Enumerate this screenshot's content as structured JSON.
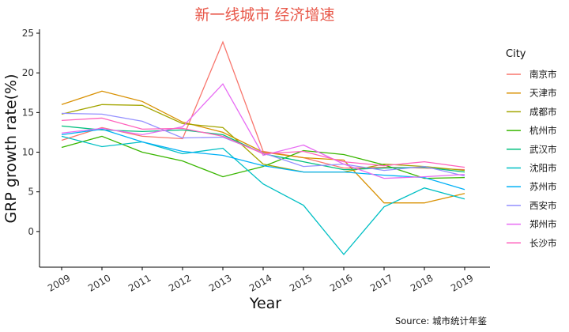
{
  "chart_data": {
    "type": "line",
    "title": "新一线城市 经济增速",
    "title_color": "#E8584A",
    "xlabel": "Year",
    "ylabel": "GRP growth rate(%)",
    "x": [
      "2009",
      "2010",
      "2011",
      "2012",
      "2013",
      "2014",
      "2015",
      "2016",
      "2017",
      "2018",
      "2019"
    ],
    "xlim": [
      2009,
      2019
    ],
    "ylim": [
      -4.5,
      25.5
    ],
    "yticks": [
      0,
      5,
      10,
      15,
      20,
      25
    ],
    "grid": false,
    "legend_title": "City",
    "legend_position": "right",
    "source": "Source: 城市统计年鉴",
    "series": [
      {
        "name": "南京市",
        "color": "#F8766D",
        "values": [
          11.5,
          13.1,
          12.0,
          11.7,
          23.9,
          10.1,
          9.3,
          8.0,
          8.1,
          8.0,
          7.8
        ]
      },
      {
        "name": "天津市",
        "color": "#D89000",
        "values": [
          16.0,
          17.7,
          16.4,
          13.8,
          12.5,
          10.0,
          9.3,
          9.0,
          3.6,
          3.6,
          4.8
        ]
      },
      {
        "name": "成都市",
        "color": "#A3A500",
        "values": [
          14.8,
          16.0,
          15.9,
          13.6,
          13.1,
          8.5,
          7.5,
          7.5,
          8.5,
          8.2,
          7.7
        ]
      },
      {
        "name": "杭州市",
        "color": "#39B600",
        "values": [
          10.6,
          12.0,
          10.0,
          8.9,
          6.9,
          8.2,
          10.2,
          9.7,
          8.4,
          6.7,
          6.8
        ]
      },
      {
        "name": "武汉市",
        "color": "#00BF7D",
        "values": [
          13.3,
          12.8,
          12.6,
          12.8,
          12.2,
          9.8,
          8.8,
          7.8,
          8.0,
          8.1,
          7.5
        ]
      },
      {
        "name": "沈阳市",
        "color": "#00BFC4",
        "values": [
          12.0,
          10.7,
          11.3,
          9.8,
          10.5,
          6.0,
          3.3,
          -2.9,
          3.1,
          5.5,
          4.1
        ]
      },
      {
        "name": "苏州市",
        "color": "#00B0F6",
        "values": [
          12.2,
          12.9,
          11.3,
          10.1,
          9.6,
          8.3,
          7.5,
          7.5,
          7.1,
          6.8,
          5.3
        ]
      },
      {
        "name": "西安市",
        "color": "#9590FF",
        "values": [
          14.9,
          14.8,
          13.9,
          11.8,
          11.9,
          9.9,
          8.2,
          8.5,
          7.7,
          8.2,
          7.0
        ]
      },
      {
        "name": "郑州市",
        "color": "#E76BF3",
        "values": [
          12.4,
          13.0,
          12.2,
          13.2,
          18.6,
          9.6,
          10.9,
          8.5,
          6.7,
          6.9,
          7.2
        ]
      },
      {
        "name": "长沙市",
        "color": "#FF62BC",
        "values": [
          14.0,
          14.3,
          12.9,
          13.0,
          12.0,
          9.8,
          10.1,
          8.8,
          8.3,
          8.8,
          8.1
        ]
      }
    ]
  }
}
